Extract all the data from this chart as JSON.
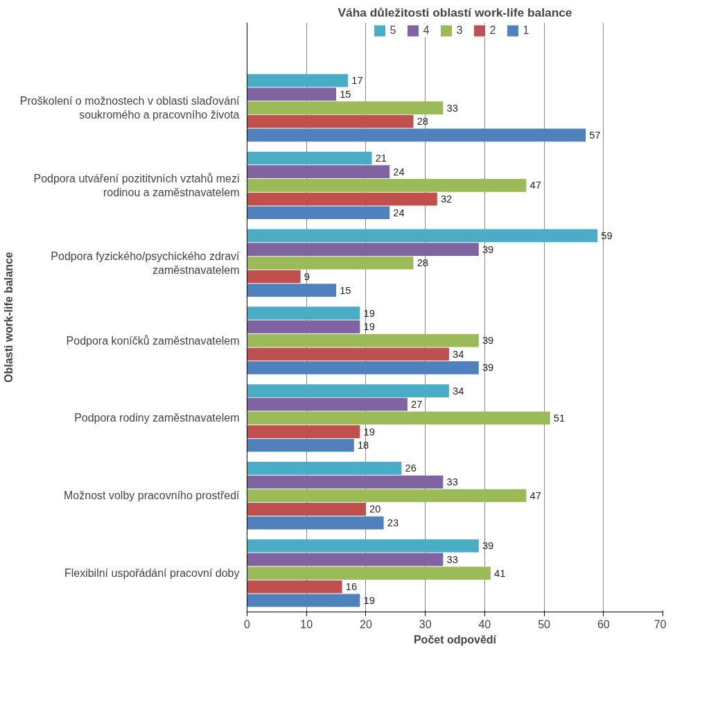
{
  "chart_data": {
    "type": "bar",
    "orientation": "horizontal",
    "title": "Váha důležitosti oblastí work-life balance",
    "xlabel": "Počet odpovědí",
    "ylabel": "Oblasti work-life balance",
    "categories": [
      "Proškolení o možnostech v oblasti slaďování soukromého a pracovního života",
      "Podpora utváření pozititvních vztahů mezi rodinou a zaměstnavatelem",
      "Podpora fyzického/psychického zdraví zaměstnavatelem",
      "Podpora koníčků zaměstnavatelem",
      "Podpora rodiny zaměstnavatelem",
      "Možnost volby pracovního prostředí",
      "Flexibilní uspořádání pracovní doby"
    ],
    "series": [
      {
        "name": "5",
        "color": "#4bacc6",
        "values": [
          17,
          21,
          59,
          19,
          34,
          26,
          39
        ]
      },
      {
        "name": "4",
        "color": "#8064a2",
        "values": [
          15,
          24,
          39,
          19,
          27,
          33,
          33
        ]
      },
      {
        "name": "3",
        "color": "#9bbb59",
        "values": [
          33,
          47,
          28,
          39,
          51,
          47,
          41
        ]
      },
      {
        "name": "2",
        "color": "#c0504d",
        "values": [
          28,
          32,
          9,
          34,
          19,
          20,
          16
        ]
      },
      {
        "name": "1",
        "color": "#4f81bd",
        "values": [
          57,
          24,
          15,
          39,
          18,
          23,
          19
        ]
      }
    ],
    "xlim": [
      0,
      70
    ],
    "xticks": [
      0,
      10,
      20,
      30,
      40,
      50,
      60,
      70
    ],
    "grid": "x",
    "legend": "top",
    "data_labels": true
  }
}
